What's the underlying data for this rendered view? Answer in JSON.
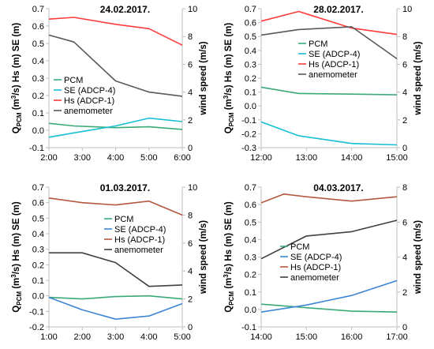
{
  "chart_data": [
    {
      "type": "line",
      "title": "24.02.2017.",
      "ylabel_left": "Q_PCM (m³/s) Hs (m) SE (m)",
      "ylabel_left_parts": [
        "Q",
        "PCM",
        " (m",
        "3",
        "/s) Hs (m) SE (m)"
      ],
      "ylabel_right": "wind speed (m/s)",
      "x_ticks": [
        "2:00",
        "3:00",
        "4:00",
        "5:00",
        "6:00"
      ],
      "xlim": [
        2,
        6
      ],
      "ylim_left": [
        -0.1,
        0.7
      ],
      "ylim_right": [
        0,
        10
      ],
      "y_ticks_left": [
        "0.7",
        "0.6",
        "0.5",
        "0.4",
        "0.3",
        "0.2",
        "0.1",
        "0.0",
        "-0.1"
      ],
      "y_ticks_right": [
        "10",
        "8",
        "6",
        "4",
        "2",
        "0"
      ],
      "series": [
        {
          "name": "PCM",
          "color": "#3aaa78",
          "axis": "left",
          "x": [
            2,
            2.75,
            4,
            5,
            6
          ],
          "y": [
            0.04,
            0.025,
            0.015,
            0.02,
            0.005
          ]
        },
        {
          "name": "SE (ADCP-4)",
          "color": "#17bfd3",
          "axis": "left",
          "x": [
            2,
            2.75,
            4,
            5,
            6
          ],
          "y": [
            -0.04,
            -0.015,
            0.025,
            0.07,
            0.05
          ]
        },
        {
          "name": "Hs (ADCP-1)",
          "color": "#ff3b3b",
          "axis": "left",
          "x": [
            2,
            2.75,
            4,
            5,
            6
          ],
          "y": [
            0.64,
            0.65,
            0.61,
            0.585,
            0.49
          ]
        },
        {
          "name": "anemometer",
          "color": "#595959",
          "axis": "right",
          "x": [
            2,
            2.75,
            4,
            5,
            6
          ],
          "y": [
            8.1,
            7.6,
            4.8,
            4.0,
            3.7
          ]
        }
      ],
      "legend": "lower-left"
    },
    {
      "type": "line",
      "title": "28.02.2017.",
      "ylabel_left": "Q_PCM (m³/s) Hs (m) SE (m)",
      "ylabel_left_parts": [
        "Q",
        "PCM",
        " (m",
        "3",
        "/s) Hs (m) SE (m)"
      ],
      "ylabel_right": "wind speed (m/s)",
      "x_ticks": [
        "12:00",
        "13:00",
        "14:00",
        "15:00"
      ],
      "xlim": [
        12,
        15
      ],
      "ylim_left": [
        -0.3,
        0.7
      ],
      "ylim_right": [
        0,
        10
      ],
      "y_ticks_left": [
        "0.7",
        "0.6",
        "0.5",
        "0.4",
        "0.3",
        "0.2",
        "0.1",
        "0.0",
        "-0.1",
        "-0.2",
        "-0.3"
      ],
      "y_ticks_right": [
        "10",
        "8",
        "6",
        "4",
        "2",
        "0"
      ],
      "series": [
        {
          "name": "PCM",
          "color": "#3aaa78",
          "axis": "left",
          "x": [
            12,
            12.83,
            14,
            15
          ],
          "y": [
            0.135,
            0.09,
            0.085,
            0.08
          ]
        },
        {
          "name": "SE (ADCP-4)",
          "color": "#17bfd3",
          "axis": "left",
          "x": [
            12,
            12.83,
            14,
            15
          ],
          "y": [
            -0.115,
            -0.215,
            -0.27,
            -0.28
          ]
        },
        {
          "name": "Hs (ADCP-1)",
          "color": "#ff3b3b",
          "axis": "left",
          "x": [
            12,
            12.83,
            14,
            15
          ],
          "y": [
            0.61,
            0.68,
            0.56,
            0.515
          ]
        },
        {
          "name": "anemometer",
          "color": "#595959",
          "axis": "right",
          "x": [
            12,
            12.83,
            14,
            15
          ],
          "y": [
            8.1,
            8.5,
            8.7,
            6.4
          ]
        }
      ],
      "legend": "center"
    },
    {
      "type": "line",
      "title": "01.03.2017.",
      "ylabel_left": "Q_PCM (m³/s) Hs (m) SE (m)",
      "ylabel_left_parts": [
        "Q",
        "PCM",
        " (m",
        "3",
        "/s) Hs (m) SE (m)"
      ],
      "ylabel_right": "wind speed (m/s)",
      "x_ticks": [
        "1:00",
        "2:00",
        "3:00",
        "4:00",
        "5:00"
      ],
      "xlim": [
        1,
        5
      ],
      "ylim_left": [
        -0.2,
        0.7
      ],
      "ylim_right": [
        0,
        10
      ],
      "y_ticks_left": [
        "0.7",
        "0.6",
        "0.5",
        "0.4",
        "0.3",
        "0.2",
        "0.1",
        "0.0",
        "-0.1",
        "-0.2"
      ],
      "y_ticks_right": [
        "10",
        "8",
        "6",
        "4",
        "2",
        "0"
      ],
      "series": [
        {
          "name": "PCM",
          "color": "#3aaa78",
          "axis": "left",
          "x": [
            1,
            2,
            3,
            4,
            5
          ],
          "y": [
            -0.01,
            -0.02,
            -0.005,
            0.0,
            -0.02
          ]
        },
        {
          "name": "SE (ADCP-4)",
          "color": "#3d85d6",
          "axis": "left",
          "x": [
            1,
            2,
            3,
            4,
            5
          ],
          "y": [
            -0.01,
            -0.09,
            -0.15,
            -0.13,
            -0.05
          ]
        },
        {
          "name": "Hs (ADCP-1)",
          "color": "#b4583f",
          "axis": "left",
          "x": [
            1,
            2,
            3,
            4,
            5
          ],
          "y": [
            0.63,
            0.6,
            0.585,
            0.61,
            0.52
          ]
        },
        {
          "name": "anemometer",
          "color": "#404040",
          "axis": "right",
          "x": [
            1,
            2,
            3,
            4,
            5
          ],
          "y": [
            5.3,
            5.3,
            4.6,
            2.9,
            3.0
          ]
        }
      ],
      "legend": "right"
    },
    {
      "type": "line",
      "title": "04.03.2017.",
      "ylabel_left": "Q_PCM (m³/s) Hs (m) SE (m)",
      "ylabel_left_parts": [
        "Q",
        "PCM",
        " (m",
        "3",
        "/s) Hs (m) SE (m)"
      ],
      "ylabel_right": "wind speed (m/s)",
      "x_ticks": [
        "14:00",
        "15:00",
        "16:00",
        "17:00"
      ],
      "xlim": [
        14,
        17
      ],
      "ylim_left": [
        -0.1,
        0.7
      ],
      "ylim_right": [
        0,
        8
      ],
      "y_ticks_left": [
        "0.7",
        "0.6",
        "0.5",
        "0.4",
        "0.3",
        "0.2",
        "0.1",
        "0.0",
        "-0.1"
      ],
      "y_ticks_right": [
        "8",
        "6",
        "4",
        "2",
        "0"
      ],
      "series": [
        {
          "name": "PCM",
          "color": "#3aaa78",
          "axis": "left",
          "x": [
            14,
            15,
            16,
            17
          ],
          "y": [
            0.03,
            0.01,
            -0.01,
            -0.015
          ]
        },
        {
          "name": "SE (ADCP-4)",
          "color": "#3d85d6",
          "axis": "left",
          "x": [
            14,
            15,
            16,
            17
          ],
          "y": [
            -0.015,
            0.025,
            0.08,
            0.165
          ]
        },
        {
          "name": "Hs (ADCP-1)",
          "color": "#b4583f",
          "axis": "left",
          "x": [
            14,
            14.5,
            15,
            16,
            17
          ],
          "y": [
            0.61,
            0.66,
            0.645,
            0.62,
            0.645
          ]
        },
        {
          "name": "anemometer",
          "color": "#404040",
          "axis": "right",
          "x": [
            14,
            15,
            16,
            17
          ],
          "y": [
            3.9,
            5.2,
            5.45,
            6.1
          ]
        }
      ],
      "legend": "center-left"
    }
  ]
}
